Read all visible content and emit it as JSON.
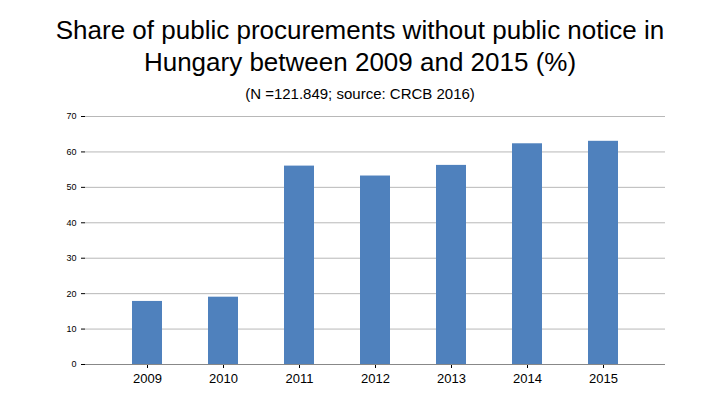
{
  "chart_data": {
    "type": "bar",
    "title": "Share of public procurements without public notice in Hungary between 2009 and 2015 (%)",
    "subtitle": "(N =121.849; source: CRCB 2016)",
    "categories": [
      "2009",
      "2010",
      "2011",
      "2012",
      "2013",
      "2014",
      "2015"
    ],
    "values": [
      17.8,
      19,
      56,
      53.2,
      56.2,
      62.3,
      63
    ],
    "color": "#4f81bd",
    "ylim": [
      0,
      70
    ],
    "yticks": [
      0,
      10,
      20,
      30,
      40,
      50,
      60,
      70
    ],
    "grid": true
  }
}
